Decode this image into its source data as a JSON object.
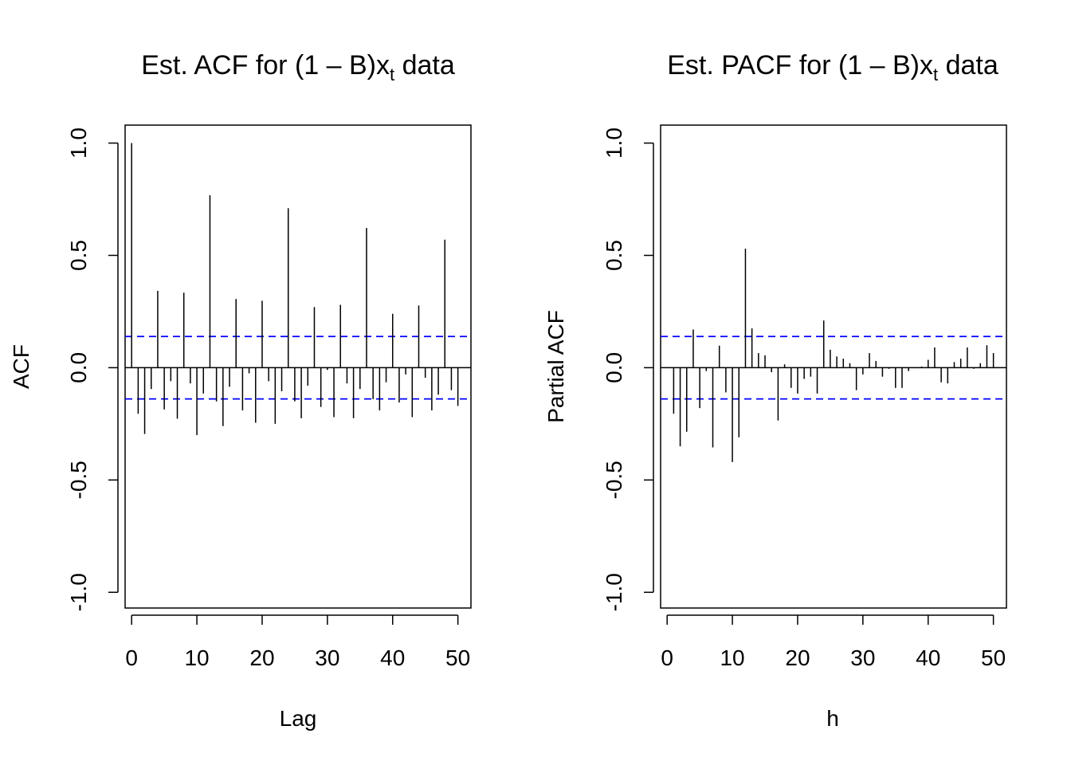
{
  "chart_data": [
    {
      "type": "bar",
      "title": {
        "prefix": "Est. ACF for ",
        "expr": "(1 – B)x",
        "sub": "t",
        "suffix": " data"
      },
      "xlabel": "Lag",
      "ylabel": "ACF",
      "xlim": [
        -1,
        52
      ],
      "ylim": [
        -1.07,
        1.08
      ],
      "xticks": [
        0,
        10,
        20,
        30,
        40,
        50
      ],
      "yticks": [
        -1.0,
        -0.5,
        0.0,
        0.5,
        1.0
      ],
      "ytick_labels": [
        "-1.0",
        "-0.5",
        "0.0",
        "0.5",
        "1.0"
      ],
      "conf_band": 0.139,
      "conf_color": "#0000ff",
      "x": [
        0,
        1,
        2,
        3,
        4,
        5,
        6,
        7,
        8,
        9,
        10,
        11,
        12,
        13,
        14,
        15,
        16,
        17,
        18,
        19,
        20,
        21,
        22,
        23,
        24,
        25,
        26,
        27,
        28,
        29,
        30,
        31,
        32,
        33,
        34,
        35,
        36,
        37,
        38,
        39,
        40,
        41,
        42,
        43,
        44,
        45,
        46,
        47,
        48,
        49,
        50
      ],
      "values": [
        1.0,
        -0.205,
        -0.295,
        -0.095,
        0.342,
        -0.186,
        -0.06,
        -0.227,
        0.334,
        -0.07,
        -0.3,
        -0.115,
        0.768,
        -0.15,
        -0.26,
        -0.085,
        0.306,
        -0.19,
        -0.025,
        -0.245,
        0.298,
        -0.06,
        -0.25,
        -0.105,
        0.71,
        -0.15,
        -0.225,
        -0.08,
        0.27,
        -0.175,
        -0.01,
        -0.22,
        0.28,
        -0.07,
        -0.225,
        -0.095,
        0.622,
        -0.14,
        -0.19,
        -0.065,
        0.24,
        -0.155,
        -0.03,
        -0.22,
        0.277,
        -0.045,
        -0.19,
        -0.12,
        0.57,
        -0.1,
        -0.17
      ]
    },
    {
      "type": "bar",
      "title": {
        "prefix": "Est. PACF for ",
        "expr": "(1 – B)x",
        "sub": "t",
        "suffix": " data"
      },
      "xlabel": "h",
      "ylabel": "Partial ACF",
      "xlim": [
        -1,
        52
      ],
      "ylim": [
        -1.07,
        1.08
      ],
      "xticks": [
        0,
        10,
        20,
        30,
        40,
        50
      ],
      "yticks": [
        -1.0,
        -0.5,
        0.0,
        0.5,
        1.0
      ],
      "ytick_labels": [
        "-1.0",
        "-0.5",
        "0.0",
        "0.5",
        "1.0"
      ],
      "conf_band": 0.139,
      "conf_color": "#0000ff",
      "x": [
        1,
        2,
        3,
        4,
        5,
        6,
        7,
        8,
        9,
        10,
        11,
        12,
        13,
        14,
        15,
        16,
        17,
        18,
        19,
        20,
        21,
        22,
        23,
        24,
        25,
        26,
        27,
        28,
        29,
        30,
        31,
        32,
        33,
        34,
        35,
        36,
        37,
        38,
        39,
        40,
        41,
        42,
        43,
        44,
        45,
        46,
        47,
        48,
        49,
        50
      ],
      "values": [
        -0.205,
        -0.35,
        -0.285,
        0.17,
        -0.18,
        -0.015,
        -0.355,
        0.098,
        -0.11,
        -0.42,
        -0.31,
        0.53,
        0.175,
        0.065,
        0.055,
        -0.02,
        -0.235,
        0.015,
        -0.09,
        -0.115,
        -0.05,
        -0.04,
        -0.115,
        0.21,
        0.08,
        0.05,
        0.04,
        0.02,
        -0.1,
        -0.03,
        0.065,
        0.03,
        -0.04,
        -0.005,
        -0.09,
        -0.09,
        -0.015,
        0.0,
        0.005,
        0.035,
        0.09,
        -0.065,
        -0.07,
        0.025,
        0.04,
        0.09,
        -0.005,
        0.02,
        0.1,
        0.065
      ]
    }
  ]
}
